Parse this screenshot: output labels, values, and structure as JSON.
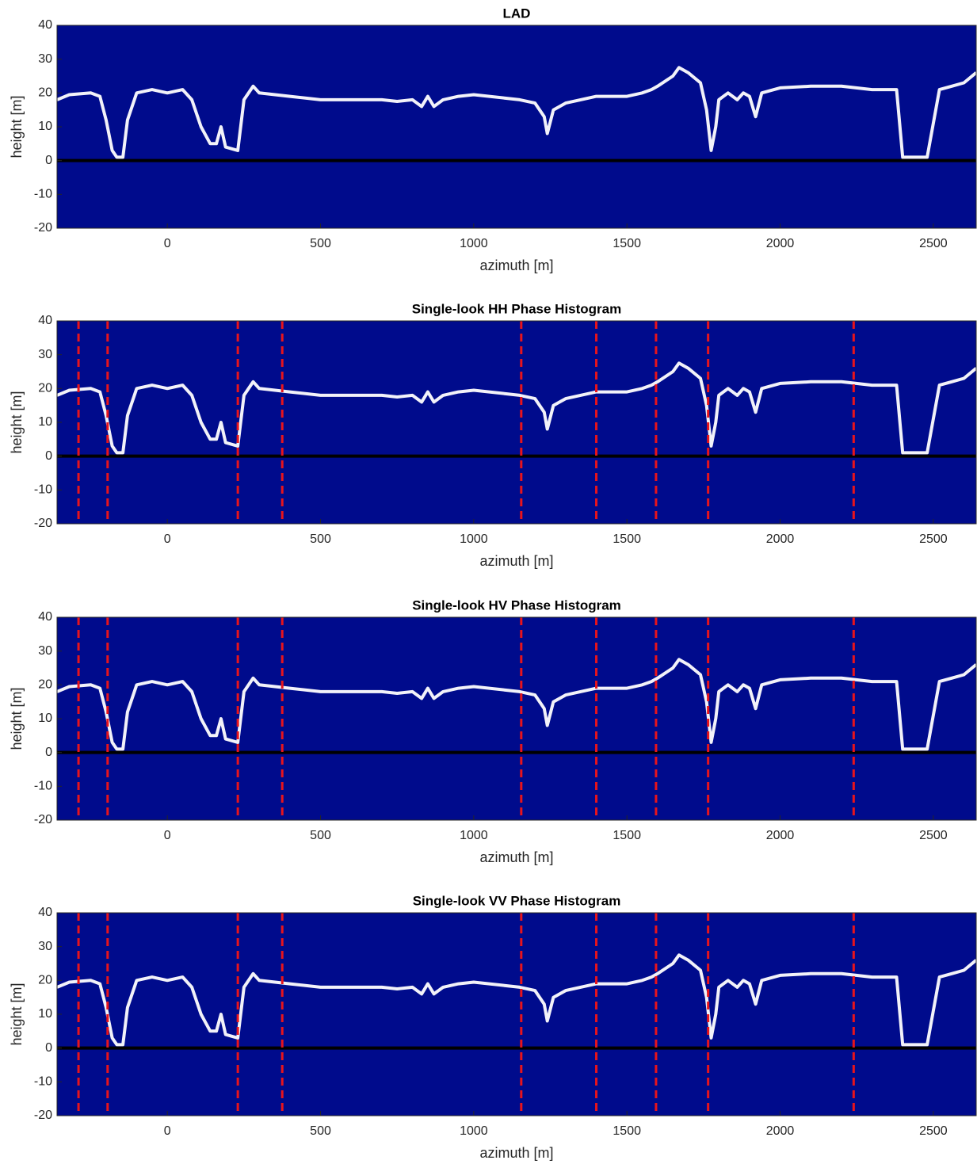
{
  "chart_data": [
    {
      "type": "line",
      "title": "LAD",
      "xlabel": "azimuth [m]",
      "ylabel": "height [m]",
      "xlim": [
        -360,
        2640
      ],
      "ylim": [
        -20,
        40
      ],
      "xticks": [
        0,
        500,
        1000,
        1500,
        2000,
        2500
      ],
      "yticks": [
        -20,
        -10,
        0,
        10,
        20,
        30,
        40
      ],
      "background": "#000b8c",
      "hline": 0,
      "hline_color": "#000000",
      "vlines": [],
      "vline_color": "#e8141c",
      "x": [
        -360,
        -320,
        -250,
        -220,
        -200,
        -180,
        -165,
        -145,
        -130,
        -100,
        -50,
        0,
        50,
        80,
        110,
        140,
        160,
        175,
        190,
        230,
        250,
        280,
        300,
        400,
        500,
        600,
        700,
        750,
        800,
        830,
        850,
        870,
        900,
        950,
        1000,
        1100,
        1150,
        1200,
        1230,
        1240,
        1260,
        1300,
        1400,
        1500,
        1550,
        1580,
        1600,
        1650,
        1670,
        1700,
        1740,
        1760,
        1775,
        1790,
        1800,
        1830,
        1860,
        1880,
        1900,
        1920,
        1940,
        2000,
        2100,
        2200,
        2300,
        2380,
        2400,
        2480,
        2520,
        2560,
        2600,
        2640
      ],
      "series": [
        {
          "color": "#ffffff",
          "values": [
            18,
            19.5,
            20,
            19,
            12,
            3,
            1,
            1,
            12,
            20,
            21,
            20,
            21,
            18,
            10,
            5,
            5,
            10,
            4,
            3,
            18,
            22,
            20,
            19,
            18,
            18,
            18,
            17.5,
            18,
            16,
            19,
            16,
            18,
            19,
            19.5,
            18.5,
            18,
            17,
            13,
            8,
            15,
            17,
            19,
            19,
            20,
            21,
            22,
            25,
            27.5,
            26,
            23,
            15,
            3,
            10,
            18,
            20,
            18,
            20,
            19,
            13,
            20,
            21.5,
            22,
            22,
            21,
            21,
            1,
            1,
            21,
            22,
            23,
            26
          ]
        }
      ]
    },
    {
      "type": "line",
      "title": "Single-look HH Phase Histogram",
      "xlabel": "azimuth [m]",
      "ylabel": "height [m]",
      "xlim": [
        -360,
        2640
      ],
      "ylim": [
        -20,
        40
      ],
      "xticks": [
        0,
        500,
        1000,
        1500,
        2000,
        2500
      ],
      "yticks": [
        -20,
        -10,
        0,
        10,
        20,
        30,
        40
      ],
      "background": "#000b8c",
      "hline": 0,
      "hline_color": "#000000",
      "vlines": [
        -290,
        -195,
        230,
        375,
        1155,
        1400,
        1595,
        1765,
        2240
      ],
      "vline_color": "#e8141c",
      "x": [
        -360,
        -320,
        -250,
        -220,
        -200,
        -180,
        -165,
        -145,
        -130,
        -100,
        -50,
        0,
        50,
        80,
        110,
        140,
        160,
        175,
        190,
        230,
        250,
        280,
        300,
        400,
        500,
        600,
        700,
        750,
        800,
        830,
        850,
        870,
        900,
        950,
        1000,
        1100,
        1150,
        1200,
        1230,
        1240,
        1260,
        1300,
        1400,
        1500,
        1550,
        1580,
        1600,
        1650,
        1670,
        1700,
        1740,
        1760,
        1775,
        1790,
        1800,
        1830,
        1860,
        1880,
        1900,
        1920,
        1940,
        2000,
        2100,
        2200,
        2300,
        2380,
        2400,
        2480,
        2520,
        2560,
        2600,
        2640
      ],
      "series": [
        {
          "color": "#ffffff",
          "values": [
            18,
            19.5,
            20,
            19,
            12,
            3,
            1,
            1,
            12,
            20,
            21,
            20,
            21,
            18,
            10,
            5,
            5,
            10,
            4,
            3,
            18,
            22,
            20,
            19,
            18,
            18,
            18,
            17.5,
            18,
            16,
            19,
            16,
            18,
            19,
            19.5,
            18.5,
            18,
            17,
            13,
            8,
            15,
            17,
            19,
            19,
            20,
            21,
            22,
            25,
            27.5,
            26,
            23,
            15,
            3,
            10,
            18,
            20,
            18,
            20,
            19,
            13,
            20,
            21.5,
            22,
            22,
            21,
            21,
            1,
            1,
            21,
            22,
            23,
            26
          ]
        }
      ]
    },
    {
      "type": "line",
      "title": "Single-look HV Phase Histogram",
      "xlabel": "azimuth [m]",
      "ylabel": "height [m]",
      "xlim": [
        -360,
        2640
      ],
      "ylim": [
        -20,
        40
      ],
      "xticks": [
        0,
        500,
        1000,
        1500,
        2000,
        2500
      ],
      "yticks": [
        -20,
        -10,
        0,
        10,
        20,
        30,
        40
      ],
      "background": "#000b8c",
      "hline": 0,
      "hline_color": "#000000",
      "vlines": [
        -290,
        -195,
        230,
        375,
        1155,
        1400,
        1595,
        1765,
        2240
      ],
      "vline_color": "#e8141c",
      "x": [
        -360,
        -320,
        -250,
        -220,
        -200,
        -180,
        -165,
        -145,
        -130,
        -100,
        -50,
        0,
        50,
        80,
        110,
        140,
        160,
        175,
        190,
        230,
        250,
        280,
        300,
        400,
        500,
        600,
        700,
        750,
        800,
        830,
        850,
        870,
        900,
        950,
        1000,
        1100,
        1150,
        1200,
        1230,
        1240,
        1260,
        1300,
        1400,
        1500,
        1550,
        1580,
        1600,
        1650,
        1670,
        1700,
        1740,
        1760,
        1775,
        1790,
        1800,
        1830,
        1860,
        1880,
        1900,
        1920,
        1940,
        2000,
        2100,
        2200,
        2300,
        2380,
        2400,
        2480,
        2520,
        2560,
        2600,
        2640
      ],
      "series": [
        {
          "color": "#ffffff",
          "values": [
            18,
            19.5,
            20,
            19,
            12,
            3,
            1,
            1,
            12,
            20,
            21,
            20,
            21,
            18,
            10,
            5,
            5,
            10,
            4,
            3,
            18,
            22,
            20,
            19,
            18,
            18,
            18,
            17.5,
            18,
            16,
            19,
            16,
            18,
            19,
            19.5,
            18.5,
            18,
            17,
            13,
            8,
            15,
            17,
            19,
            19,
            20,
            21,
            22,
            25,
            27.5,
            26,
            23,
            15,
            3,
            10,
            18,
            20,
            18,
            20,
            19,
            13,
            20,
            21.5,
            22,
            22,
            21,
            21,
            1,
            1,
            21,
            22,
            23,
            26
          ]
        }
      ]
    },
    {
      "type": "line",
      "title": "Single-look VV Phase Histogram",
      "xlabel": "azimuth [m]",
      "ylabel": "height [m]",
      "xlim": [
        -360,
        2640
      ],
      "ylim": [
        -20,
        40
      ],
      "xticks": [
        0,
        500,
        1000,
        1500,
        2000,
        2500
      ],
      "yticks": [
        -20,
        -10,
        0,
        10,
        20,
        30,
        40
      ],
      "background": "#000b8c",
      "hline": 0,
      "hline_color": "#000000",
      "vlines": [
        -290,
        -195,
        230,
        375,
        1155,
        1400,
        1595,
        1765,
        2240
      ],
      "vline_color": "#e8141c",
      "x": [
        -360,
        -320,
        -250,
        -220,
        -200,
        -180,
        -165,
        -145,
        -130,
        -100,
        -50,
        0,
        50,
        80,
        110,
        140,
        160,
        175,
        190,
        230,
        250,
        280,
        300,
        400,
        500,
        600,
        700,
        750,
        800,
        830,
        850,
        870,
        900,
        950,
        1000,
        1100,
        1150,
        1200,
        1230,
        1240,
        1260,
        1300,
        1400,
        1500,
        1550,
        1580,
        1600,
        1650,
        1670,
        1700,
        1740,
        1760,
        1775,
        1790,
        1800,
        1830,
        1860,
        1880,
        1900,
        1920,
        1940,
        2000,
        2100,
        2200,
        2300,
        2380,
        2400,
        2480,
        2520,
        2560,
        2600,
        2640
      ],
      "series": [
        {
          "color": "#ffffff",
          "values": [
            18,
            19.5,
            20,
            19,
            12,
            3,
            1,
            1,
            12,
            20,
            21,
            20,
            21,
            18,
            10,
            5,
            5,
            10,
            4,
            3,
            18,
            22,
            20,
            19,
            18,
            18,
            18,
            17.5,
            18,
            16,
            19,
            16,
            18,
            19,
            19.5,
            18.5,
            18,
            17,
            13,
            8,
            15,
            17,
            19,
            19,
            20,
            21,
            22,
            25,
            27.5,
            26,
            23,
            15,
            3,
            10,
            18,
            20,
            18,
            20,
            19,
            13,
            20,
            21.5,
            22,
            22,
            21,
            21,
            1,
            1,
            21,
            22,
            23,
            26
          ]
        }
      ]
    }
  ]
}
